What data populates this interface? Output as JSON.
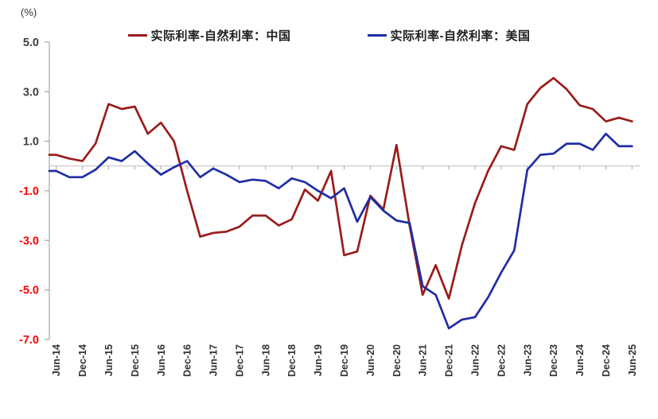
{
  "chart_data": {
    "type": "line",
    "title": "",
    "unit_label": "(%)",
    "legend_position": "top",
    "grid": "zero horizontal line only",
    "ylim": [
      -7.0,
      5.0
    ],
    "y_tick_values": [
      5.0,
      3.0,
      1.0,
      -1.0,
      -3.0,
      -5.0,
      -7.0
    ],
    "y_tick_labels": [
      "5.0",
      "3.0",
      "1.0",
      "-1.0",
      "-3.0",
      "-5.0",
      "-7.0"
    ],
    "x_tick_labels": [
      "Jun-14",
      "Dec-14",
      "Jun-15",
      "Dec-15",
      "Jun-16",
      "Dec-16",
      "Jun-17",
      "Dec-17",
      "Jun-18",
      "Dec-18",
      "Jun-19",
      "Dec-19",
      "Jun-20",
      "Dec-20",
      "Jun-21",
      "Dec-21",
      "Jun-22",
      "Dec-22",
      "Jun-23",
      "Dec-23",
      "Jun-24",
      "Dec-24",
      "Jun-25"
    ],
    "x": [
      "Jun-14",
      "Sep-14",
      "Dec-14",
      "Mar-15",
      "Jun-15",
      "Sep-15",
      "Dec-15",
      "Mar-16",
      "Jun-16",
      "Sep-16",
      "Dec-16",
      "Mar-17",
      "Jun-17",
      "Sep-17",
      "Dec-17",
      "Mar-18",
      "Jun-18",
      "Sep-18",
      "Dec-18",
      "Mar-19",
      "Jun-19",
      "Sep-19",
      "Dec-19",
      "Mar-20",
      "Jun-20",
      "Sep-20",
      "Dec-20",
      "Mar-21",
      "Jun-21",
      "Sep-21",
      "Dec-21",
      "Mar-22",
      "Jun-22",
      "Sep-22",
      "Dec-22",
      "Mar-23",
      "Jun-23",
      "Sep-23",
      "Dec-23",
      "Mar-24",
      "Jun-24",
      "Sep-24",
      "Dec-24",
      "Mar-25",
      "Jun-25"
    ],
    "series": [
      {
        "name": "实际利率-自然利率：中国",
        "color": "#9A1C1C",
        "values": [
          0.45,
          0.3,
          0.2,
          0.9,
          2.5,
          2.3,
          2.4,
          1.3,
          1.75,
          1.0,
          -1.0,
          -2.85,
          -2.7,
          -2.65,
          -2.45,
          -2.0,
          -2.0,
          -2.4,
          -2.15,
          -0.95,
          -1.4,
          -0.2,
          -3.6,
          -3.45,
          -1.2,
          -1.75,
          0.85,
          -2.4,
          -5.2,
          -4.0,
          -5.35,
          -3.2,
          -1.5,
          -0.2,
          0.8,
          0.65,
          2.5,
          3.15,
          3.55,
          3.1,
          2.45,
          2.3,
          1.8,
          1.95,
          1.8
        ]
      },
      {
        "name": "实际利率-自然利率：美国",
        "color": "#1F2DA3",
        "values": [
          -0.2,
          -0.45,
          -0.45,
          -0.15,
          0.35,
          0.2,
          0.6,
          0.1,
          -0.35,
          -0.05,
          0.2,
          -0.45,
          -0.1,
          -0.35,
          -0.65,
          -0.55,
          -0.6,
          -0.9,
          -0.5,
          -0.65,
          -1.0,
          -1.3,
          -0.9,
          -2.25,
          -1.25,
          -1.8,
          -2.2,
          -2.3,
          -4.85,
          -5.2,
          -6.55,
          -6.2,
          -6.1,
          -5.3,
          -4.3,
          -3.4,
          -0.15,
          0.45,
          0.5,
          0.9,
          0.9,
          0.65,
          1.3,
          0.8,
          0.8
        ]
      }
    ],
    "colors": {
      "positive_tick_label": "#3F3F3F",
      "negative_tick_label": "#FF0000",
      "axis": "#A6A6A6",
      "gridline": "#BFBFBF",
      "x_label": "#333333"
    }
  }
}
